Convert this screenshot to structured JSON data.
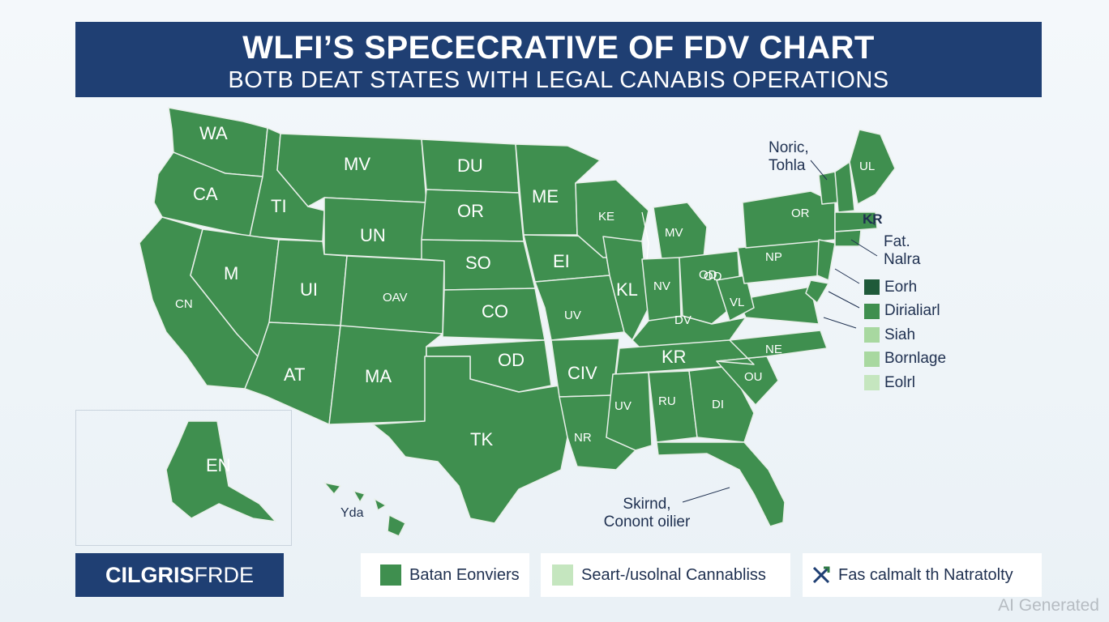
{
  "title": {
    "main": "WLFI’S SPECECRATIVE OF FDV CHART",
    "sub": "BOTB DEAT STATES WITH LEGAL CANABIS OPERATIONS"
  },
  "colors": {
    "banner": "#1f3f73",
    "state_fill": "#3f8f4f",
    "state_border": "#e8efe9",
    "legend_dark": "#1f5a3a",
    "legend_mid": "#3f8f4f",
    "legend_light": "#a8d8a0",
    "legend_pale": "#c5e6bf"
  },
  "state_labels": [
    "WA",
    "MV",
    "CA",
    "TI",
    "UN",
    "DU",
    "OR",
    "ME",
    "KE",
    "MV",
    "OR",
    "M",
    "UI",
    "OAV",
    "SO",
    "EI",
    "KL",
    "NV",
    "OD",
    "NP",
    "CN",
    "CO",
    "UV",
    "AT",
    "MA",
    "OD",
    "CIV",
    "KR",
    "NE",
    "TK",
    "UV",
    "RU",
    "DI",
    "NR",
    "EN",
    "OU",
    "OD",
    "UL",
    "VL",
    "DV",
    "Yda"
  ],
  "notes": {
    "top_right": [
      "Noric,",
      "Tohla"
    ],
    "mid_right_code": "KR",
    "mid_right": [
      "Fat.",
      "Nalra"
    ],
    "gulf": [
      "Skirnd,",
      "Conont oilier"
    ]
  },
  "side_legend": [
    {
      "label": "Eorh",
      "color": "#1f5a3a"
    },
    {
      "label": "Dirialiarl",
      "color": "#3f8f4f"
    },
    {
      "label": "Siah",
      "color": "#a8d8a0"
    },
    {
      "label": "Bornlage",
      "color": "#a8d8a0"
    },
    {
      "label": "Eolrl",
      "color": "#c5e6bf"
    }
  ],
  "bottom": {
    "badge_bold": "CILGRIS",
    "badge_rest": " FRDE",
    "legend_1": "Batan Eonviers",
    "legend_2": "Seart-/usolnal Cannabliss",
    "legend_3": "Fas calmalt th Natratolty",
    "legend_3_icon": "cross-arrow-icon"
  },
  "watermark": "AI Generated"
}
